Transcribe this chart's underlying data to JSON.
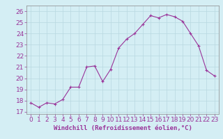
{
  "x": [
    0,
    1,
    2,
    3,
    4,
    5,
    6,
    7,
    8,
    9,
    10,
    11,
    12,
    13,
    14,
    15,
    16,
    17,
    18,
    19,
    20,
    21,
    22,
    23
  ],
  "y": [
    17.8,
    17.4,
    17.8,
    17.7,
    18.1,
    19.2,
    19.2,
    21.0,
    21.1,
    19.7,
    20.8,
    22.7,
    23.5,
    24.0,
    24.8,
    25.6,
    25.4,
    25.7,
    25.5,
    25.1,
    24.0,
    22.9,
    20.7,
    20.2
  ],
  "line_color": "#993399",
  "marker": "+",
  "marker_size": 3,
  "xlabel": "Windchill (Refroidissement éolien,°C)",
  "ylim": [
    16.8,
    26.5
  ],
  "xlim": [
    -0.5,
    23.5
  ],
  "yticks": [
    17,
    18,
    19,
    20,
    21,
    22,
    23,
    24,
    25,
    26
  ],
  "xtick_labels": [
    "0",
    "1",
    "2",
    "3",
    "4",
    "5",
    "6",
    "7",
    "8",
    "9",
    "10",
    "11",
    "12",
    "13",
    "14",
    "15",
    "16",
    "17",
    "18",
    "19",
    "20",
    "21",
    "22",
    "23"
  ],
  "bg_color": "#d4eef4",
  "grid_color": "#b8d8e0",
  "xlabel_fontsize": 6.5,
  "tick_fontsize": 6.5
}
